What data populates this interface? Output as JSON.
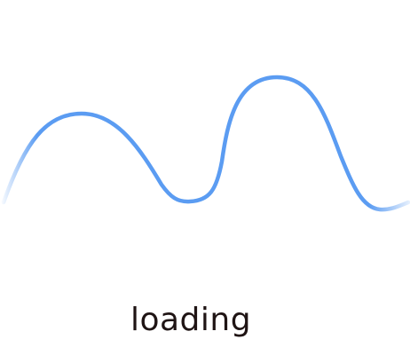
{
  "loader": {
    "label": "loading",
    "wave_color": "#5b9cf2",
    "text_color": "#1f1414",
    "background": "#ffffff"
  }
}
